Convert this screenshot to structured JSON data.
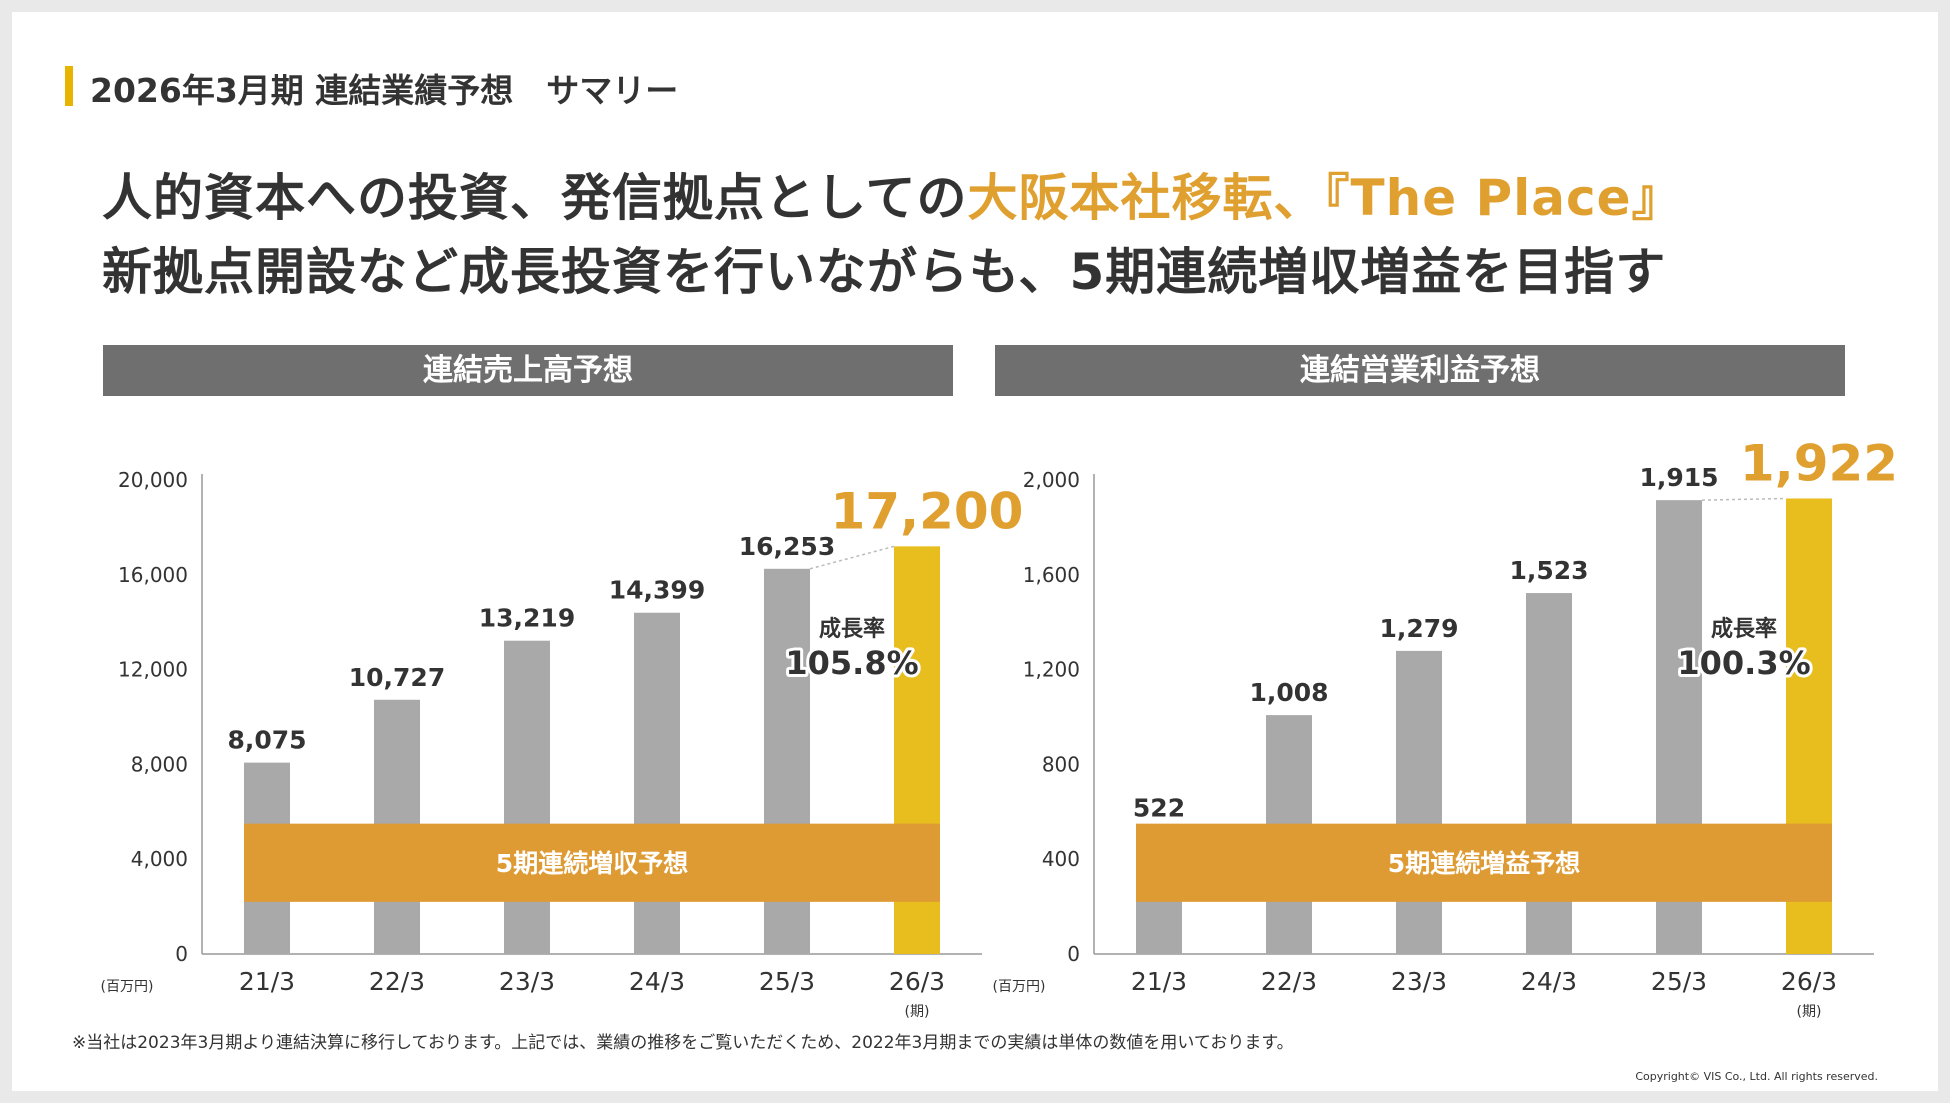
{
  "section_title": "2026年3月期 連結業績予想　サマリー",
  "headline": {
    "line1_part1": "人的資本への投資、発信拠点としての",
    "line1_highlight": "大阪本社移転、『The Place』",
    "line2": "新拠点開設など成長投資を行いながらも、5期連続増収増益を目指す"
  },
  "colors": {
    "accent": "#e8b400",
    "bar": "#a9a9a9",
    "forecast_bar": "#e8bd1e",
    "band": "#de9b34",
    "header_bg": "#6f6f6f",
    "highlight_text": "#e0a030"
  },
  "chart_data": [
    {
      "type": "bar",
      "title": "連結売上高予想",
      "categories": [
        "21/3",
        "22/3",
        "23/3",
        "24/3",
        "25/3",
        "26/3"
      ],
      "values": [
        8075,
        10727,
        13219,
        14399,
        16253,
        17200
      ],
      "value_labels": [
        "8,075",
        "10,727",
        "13,219",
        "14,399",
        "16,253",
        "17,200"
      ],
      "forecast_index": 5,
      "ylim": [
        0,
        20000
      ],
      "yticks": [
        0,
        4000,
        8000,
        12000,
        16000,
        20000
      ],
      "ytick_labels": [
        "0",
        "4,000",
        "8,000",
        "12,000",
        "16,000",
        "20,000"
      ],
      "ylabel": "(百万円)",
      "xlabel_note": "(期)",
      "band_label": "5期連続増収予想",
      "band_range": [
        2200,
        5500
      ],
      "growth_label": "成長率",
      "growth_value": "105.8%"
    },
    {
      "type": "bar",
      "title": "連結営業利益予想",
      "categories": [
        "21/3",
        "22/3",
        "23/3",
        "24/3",
        "25/3",
        "26/3"
      ],
      "values": [
        522,
        1008,
        1279,
        1523,
        1915,
        1922
      ],
      "value_labels": [
        "522",
        "1,008",
        "1,279",
        "1,523",
        "1,915",
        "1,922"
      ],
      "forecast_index": 5,
      "ylim": [
        0,
        2000
      ],
      "yticks": [
        0,
        400,
        800,
        1200,
        1600,
        2000
      ],
      "ytick_labels": [
        "0",
        "400",
        "800",
        "1,200",
        "1,600",
        "2,000"
      ],
      "ylabel": "(百万円)",
      "xlabel_note": "(期)",
      "band_label": "5期連続増益予想",
      "band_range": [
        220,
        550
      ],
      "growth_label": "成長率",
      "growth_value": "100.3%"
    }
  ],
  "footnote": "※当社は2023年3月期より連結決算に移行しております。上記では、業績の推移をご覧いただくため、2022年3月期までの実績は単体の数値を用いております。",
  "copyright": "Copyright© VIS Co., Ltd. All rights reserved."
}
